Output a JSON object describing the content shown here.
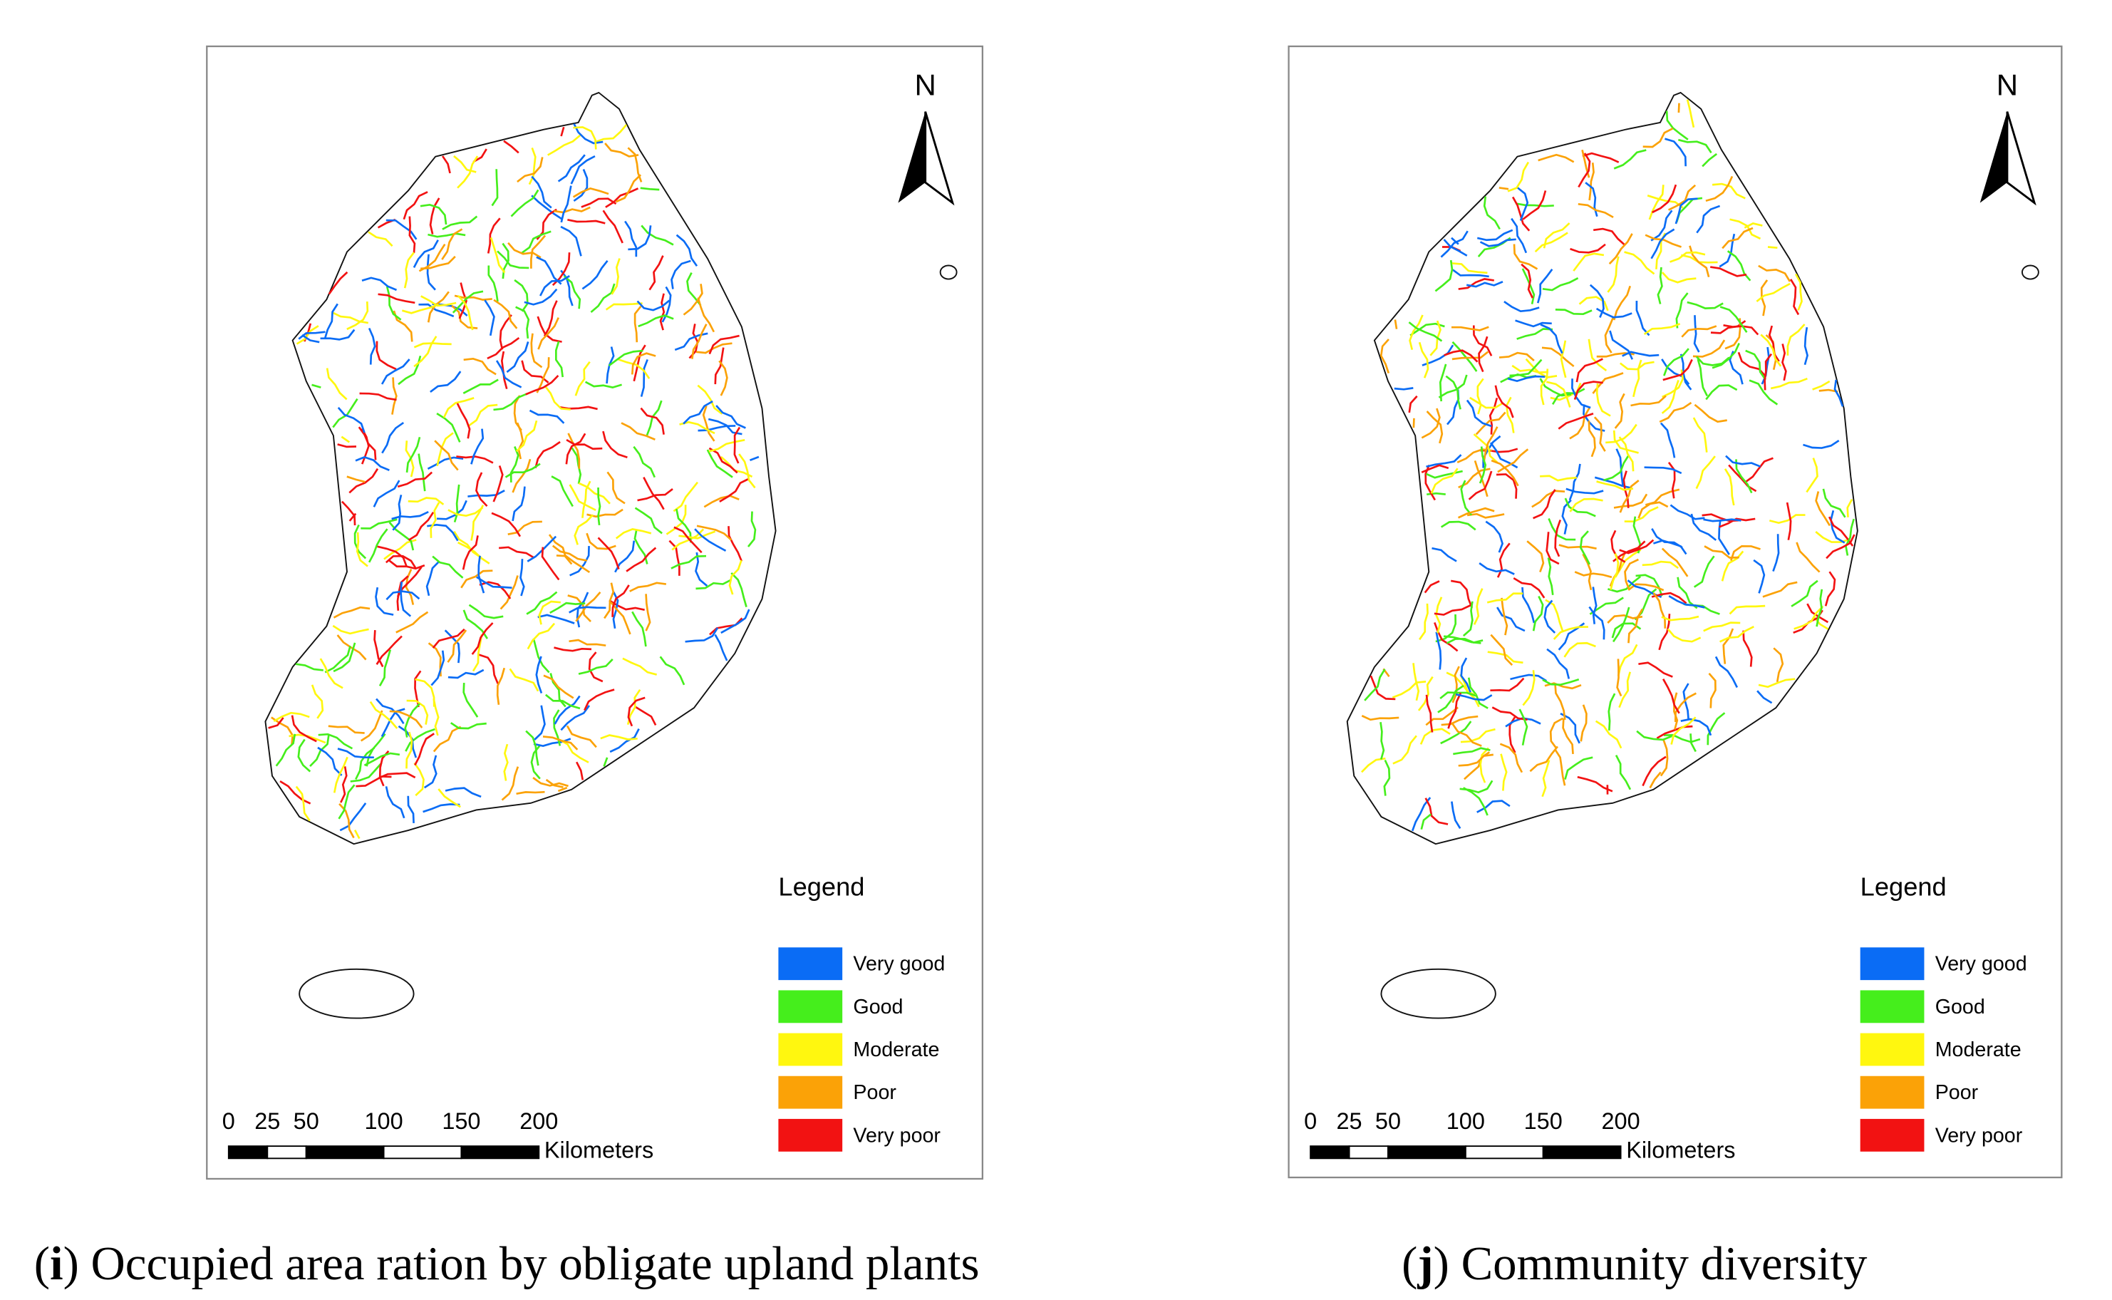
{
  "panels": [
    {
      "caption": [
        "(",
        "i",
        ") Occupied area ration by obligate upland plants"
      ],
      "north": "N",
      "legend_title": "Legend",
      "legend": [
        {
          "label": "Very good",
          "color": "#0a6cf5"
        },
        {
          "label": "Good",
          "color": "#45ee1c"
        },
        {
          "label": "Moderate",
          "color": "#fff70f"
        },
        {
          "label": "Poor",
          "color": "#fba207"
        },
        {
          "label": "Very poor",
          "color": "#f21212"
        }
      ],
      "scale": {
        "ticks": [
          0,
          25,
          50,
          100,
          150,
          200
        ],
        "unit": "Kilometers"
      }
    },
    {
      "caption": [
        "(",
        "j",
        ") Community diversity"
      ],
      "north": "N",
      "legend_title": "Legend",
      "legend": [
        {
          "label": "Very good",
          "color": "#0a6cf5"
        },
        {
          "label": "Good",
          "color": "#45ee1c"
        },
        {
          "label": "Moderate",
          "color": "#fff70f"
        },
        {
          "label": "Poor",
          "color": "#fba207"
        },
        {
          "label": "Very poor",
          "color": "#f21212"
        }
      ],
      "scale": {
        "ticks": [
          0,
          25,
          50,
          100,
          150,
          200
        ],
        "unit": "Kilometers"
      }
    }
  ]
}
